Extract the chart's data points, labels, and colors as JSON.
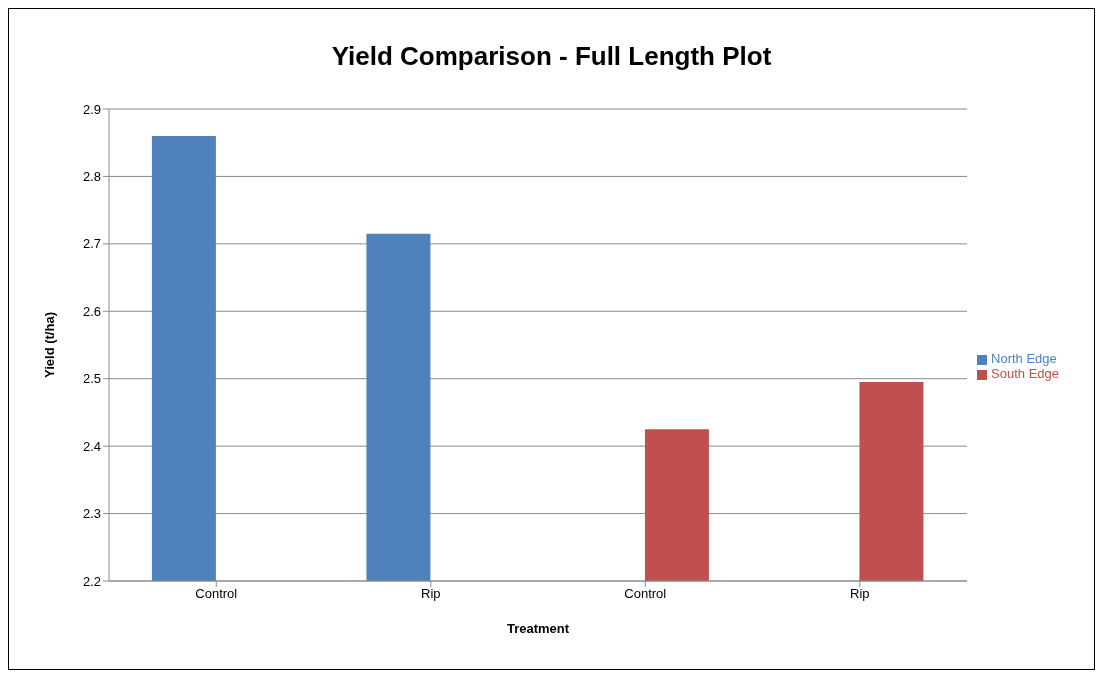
{
  "chart_data": {
    "type": "bar",
    "title": "Yield Comparison - Full Length Plot",
    "xlabel": "Treatment",
    "ylabel": "Yield (t/ha)",
    "categories": [
      "Control",
      "Rip",
      "Control",
      "Rip"
    ],
    "series": [
      {
        "name": "North Edge",
        "color": "#4f81bd",
        "values": [
          2.86,
          2.715,
          null,
          null
        ]
      },
      {
        "name": "South Edge",
        "color": "#c0504d",
        "values": [
          null,
          null,
          2.425,
          2.495
        ]
      }
    ],
    "ylim": [
      2.2,
      2.9
    ],
    "yticks": [
      2.2,
      2.3,
      2.4,
      2.5,
      2.6,
      2.7,
      2.8,
      2.9
    ],
    "grid": "y",
    "legend": "right"
  }
}
